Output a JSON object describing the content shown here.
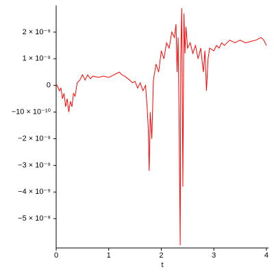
{
  "chart_data": {
    "type": "line",
    "xlabel": "t",
    "color": "#ff0000",
    "x": [
      0,
      0.03,
      0.06,
      0.09,
      0.12,
      0.15,
      0.18,
      0.21,
      0.24,
      0.27,
      0.3,
      0.33,
      0.36,
      0.4,
      0.45,
      0.5,
      0.55,
      0.6,
      0.65,
      0.7,
      0.8,
      0.9,
      1.0,
      1.1,
      1.2,
      1.25,
      1.3,
      1.4,
      1.45,
      1.5,
      1.55,
      1.6,
      1.65,
      1.7,
      1.73,
      1.75,
      1.77,
      1.79,
      1.82,
      1.85,
      1.9,
      1.95,
      2.0,
      2.05,
      2.1,
      2.15,
      2.2,
      2.25,
      2.28,
      2.3,
      2.32,
      2.34,
      2.36,
      2.37,
      2.39,
      2.41,
      2.43,
      2.45,
      2.47,
      2.5,
      2.55,
      2.6,
      2.65,
      2.7,
      2.75,
      2.8,
      2.83,
      2.86,
      2.89,
      2.92,
      3.0,
      3.05,
      3.1,
      3.15,
      3.2,
      3.3,
      3.4,
      3.5,
      3.6,
      3.7,
      3.8,
      3.9,
      3.95,
      4.0
    ],
    "values": [
      5e-11,
      -5e-11,
      -2e-10,
      -1e-10,
      -5e-10,
      -3e-10,
      -8e-10,
      -5e-10,
      -1e-09,
      -6e-10,
      -8e-10,
      -3e-10,
      -4e-10,
      1e-10,
      2e-10,
      4e-10,
      2e-10,
      4e-10,
      2.5e-10,
      3.5e-10,
      3e-10,
      3.5e-10,
      3e-10,
      4e-10,
      5e-10,
      4e-10,
      3.5e-10,
      2e-10,
      1e-10,
      1.5e-10,
      -1e-10,
      1e-10,
      -2e-10,
      0.0,
      -8e-10,
      -1.5e-09,
      -3.2e-09,
      -1e-09,
      -2e-09,
      2e-10,
      8e-10,
      5e-10,
      1.3e-09,
      1e-09,
      1.6e-09,
      1.4e-09,
      2e-09,
      1.8e-09,
      2.3e-09,
      5e-10,
      1.8e-09,
      -1.5e-09,
      -6e-09,
      1e-09,
      2.9e-09,
      -3.8e-09,
      2.7e-09,
      1.2e-09,
      2.2e-09,
      1.4e-09,
      1.6e-09,
      1.2e-09,
      1.5e-09,
      1e-09,
      1.4e-09,
      5e-10,
      1.3e-09,
      -2e-10,
      1e-09,
      1.4e-09,
      1.3e-09,
      1.5e-09,
      1.4e-09,
      1.6e-09,
      1.5e-09,
      1.7e-09,
      1.6e-09,
      1.7e-09,
      1.6e-09,
      1.65e-09,
      1.7e-09,
      1.8e-09,
      1.7e-09,
      1.5e-09
    ],
    "xlim": [
      0,
      4.04
    ],
    "ylim": [
      -6.1e-09,
      3e-09
    ],
    "xticks": [
      0,
      1,
      2,
      3,
      4
    ],
    "yticks": [
      {
        "value": -5e-09,
        "label": "−5 × 10⁻⁹"
      },
      {
        "value": -4e-09,
        "label": "−4 × 10⁻⁹"
      },
      {
        "value": -3e-09,
        "label": "−3 × 10⁻⁹"
      },
      {
        "value": -2e-09,
        "label": "−2 × 10⁻⁹"
      },
      {
        "value": -1e-09,
        "label": "−10 × 10⁻¹⁰"
      },
      0,
      {
        "value": 1e-09,
        "label": "1 × 10⁻⁹"
      },
      {
        "value": 2e-09,
        "label": "2 × 10⁻⁹"
      }
    ]
  }
}
